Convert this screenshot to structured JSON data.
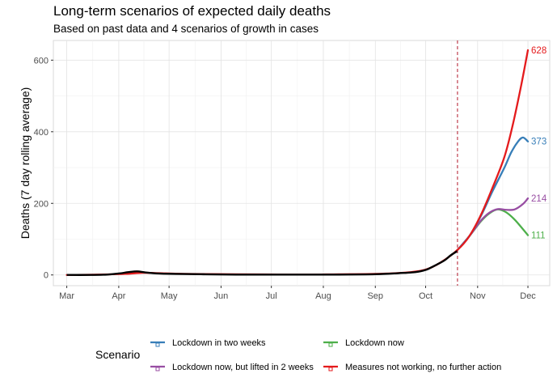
{
  "chart_data": {
    "type": "line",
    "title": "Long-term scenarios of expected daily deaths",
    "subtitle": "Based on past data and 4 scenarios of growth in cases",
    "xlabel": "",
    "ylabel": "Deaths (7 day rolling average)",
    "x_ticks": [
      "Mar",
      "Apr",
      "May",
      "Jun",
      "Jul",
      "Aug",
      "Sep",
      "Oct",
      "Nov",
      "Dec"
    ],
    "x_tick_dates": [
      "2020-03-01",
      "2020-04-01",
      "2020-05-01",
      "2020-06-01",
      "2020-07-01",
      "2020-08-01",
      "2020-09-01",
      "2020-10-01",
      "2020-11-01",
      "2020-12-01"
    ],
    "x_range": [
      "2020-02-22",
      "2020-12-14"
    ],
    "y_ticks": [
      0,
      200,
      400,
      600
    ],
    "ylim": [
      -30,
      655
    ],
    "grid": true,
    "vline_date": "2020-10-20",
    "legend_position": "bottom",
    "legend_title": "Scenario",
    "observed": {
      "color": "#000000",
      "points": [
        [
          "2020-03-01",
          0
        ],
        [
          "2020-03-15",
          0
        ],
        [
          "2020-03-25",
          1
        ],
        [
          "2020-04-01",
          4
        ],
        [
          "2020-04-07",
          8
        ],
        [
          "2020-04-12",
          10
        ],
        [
          "2020-04-17",
          7
        ],
        [
          "2020-04-25",
          4
        ],
        [
          "2020-05-05",
          3
        ],
        [
          "2020-05-20",
          2
        ],
        [
          "2020-06-10",
          1
        ],
        [
          "2020-07-15",
          1
        ],
        [
          "2020-08-10",
          1
        ],
        [
          "2020-09-01",
          2
        ],
        [
          "2020-09-15",
          5
        ],
        [
          "2020-09-25",
          8
        ],
        [
          "2020-10-01",
          14
        ],
        [
          "2020-10-06",
          25
        ],
        [
          "2020-10-12",
          40
        ],
        [
          "2020-10-16",
          55
        ],
        [
          "2020-10-20",
          67
        ]
      ]
    },
    "series": [
      {
        "name": "Lockdown in two weeks",
        "color": "#377EB8",
        "end_label": "373",
        "points": [
          [
            "2020-10-20",
            70
          ],
          [
            "2020-10-27",
            108
          ],
          [
            "2020-11-03",
            165
          ],
          [
            "2020-11-10",
            235
          ],
          [
            "2020-11-17",
            300
          ],
          [
            "2020-11-21",
            342
          ],
          [
            "2020-11-25",
            372
          ],
          [
            "2020-11-28",
            384
          ],
          [
            "2020-12-01",
            373
          ]
        ]
      },
      {
        "name": "Lockdown now",
        "color": "#4DAF4A",
        "end_label": "111",
        "points": [
          [
            "2020-10-20",
            70
          ],
          [
            "2020-10-27",
            108
          ],
          [
            "2020-11-03",
            150
          ],
          [
            "2020-11-08",
            172
          ],
          [
            "2020-11-13",
            183
          ],
          [
            "2020-11-18",
            175
          ],
          [
            "2020-11-23",
            155
          ],
          [
            "2020-11-28",
            128
          ],
          [
            "2020-12-01",
            111
          ]
        ]
      },
      {
        "name": "Lockdown now, but lifted in 2 weeks",
        "color": "#984EA3",
        "end_label": "214",
        "points": [
          [
            "2020-10-20",
            70
          ],
          [
            "2020-10-27",
            108
          ],
          [
            "2020-11-03",
            152
          ],
          [
            "2020-11-08",
            174
          ],
          [
            "2020-11-13",
            184
          ],
          [
            "2020-11-18",
            182
          ],
          [
            "2020-11-23",
            183
          ],
          [
            "2020-11-28",
            198
          ],
          [
            "2020-12-01",
            214
          ]
        ]
      },
      {
        "name": "Measures not working, no further action",
        "color": "#E41A1C",
        "end_label": "628",
        "points": [
          [
            "2020-03-01",
            0
          ],
          [
            "2020-03-20",
            1
          ],
          [
            "2020-04-05",
            3
          ],
          [
            "2020-04-15",
            6
          ],
          [
            "2020-04-25",
            5
          ],
          [
            "2020-05-10",
            3
          ],
          [
            "2020-06-10",
            2
          ],
          [
            "2020-07-15",
            1
          ],
          [
            "2020-08-10",
            2
          ],
          [
            "2020-09-01",
            3
          ],
          [
            "2020-09-20",
            7
          ],
          [
            "2020-10-01",
            15
          ],
          [
            "2020-10-10",
            35
          ],
          [
            "2020-10-20",
            70
          ],
          [
            "2020-10-27",
            108
          ],
          [
            "2020-11-03",
            168
          ],
          [
            "2020-11-10",
            245
          ],
          [
            "2020-11-17",
            330
          ],
          [
            "2020-11-22",
            420
          ],
          [
            "2020-11-27",
            530
          ],
          [
            "2020-12-01",
            628
          ]
        ]
      }
    ]
  },
  "legend": {
    "title": "Scenario",
    "items": [
      {
        "label": "Lockdown in two weeks",
        "color": "#377EB8"
      },
      {
        "label": "Lockdown now",
        "color": "#4DAF4A"
      },
      {
        "label": "Lockdown now, but lifted in 2 weeks",
        "color": "#984EA3"
      },
      {
        "label": "Measures not working, no further action",
        "color": "#E41A1C"
      }
    ]
  }
}
